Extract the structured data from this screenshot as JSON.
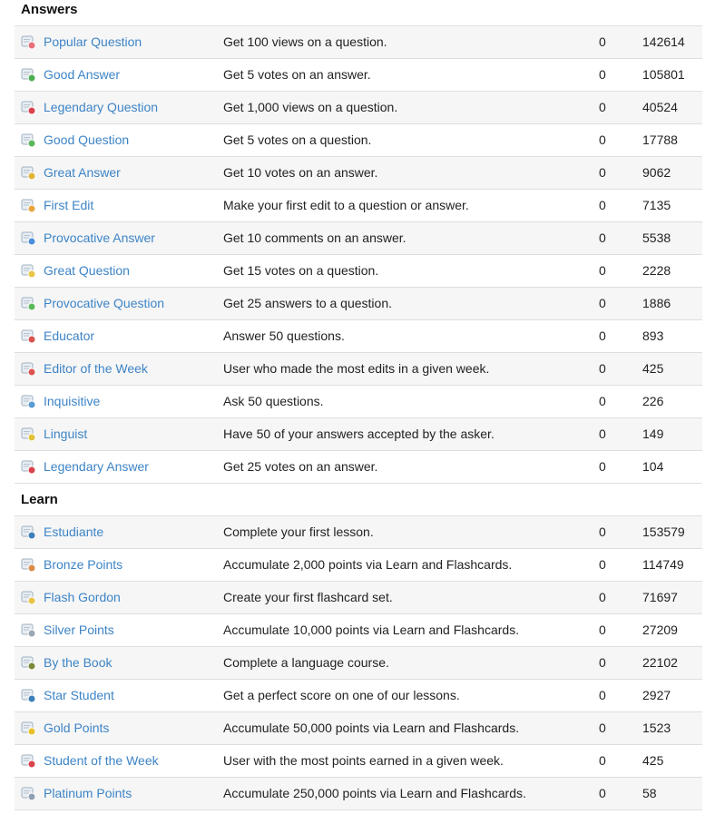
{
  "sections": [
    {
      "title": "Answers",
      "rows": [
        {
          "name": "Popular Question",
          "desc": "Get 100 views on a question.",
          "earned": "0",
          "count": "142614",
          "icon": "popular-question-icon",
          "color": "#e8707a"
        },
        {
          "name": "Good Answer",
          "desc": "Get 5 votes on an answer.",
          "earned": "0",
          "count": "105801",
          "icon": "good-answer-icon",
          "color": "#4caf50"
        },
        {
          "name": "Legendary Question",
          "desc": "Get 1,000 views on a question.",
          "earned": "0",
          "count": "40524",
          "icon": "legendary-question-icon",
          "color": "#d9434e"
        },
        {
          "name": "Good Question",
          "desc": "Get 5 votes on a question.",
          "earned": "0",
          "count": "17788",
          "icon": "good-question-icon",
          "color": "#5cb85c"
        },
        {
          "name": "Great Answer",
          "desc": "Get 10 votes on an answer.",
          "earned": "0",
          "count": "9062",
          "icon": "great-answer-icon",
          "color": "#e0b43a"
        },
        {
          "name": "First Edit",
          "desc": "Make your first edit to a question or answer.",
          "earned": "0",
          "count": "7135",
          "icon": "first-edit-icon",
          "color": "#e8a640"
        },
        {
          "name": "Provocative Answer",
          "desc": "Get 10 comments on an answer.",
          "earned": "0",
          "count": "5538",
          "icon": "provocative-answer-icon",
          "color": "#4a90d9"
        },
        {
          "name": "Great Question",
          "desc": "Get 15 votes on a question.",
          "earned": "0",
          "count": "2228",
          "icon": "great-question-icon",
          "color": "#e8c547"
        },
        {
          "name": "Provocative Question",
          "desc": "Get 25 answers to a question.",
          "earned": "0",
          "count": "1886",
          "icon": "provocative-question-icon",
          "color": "#5cb85c"
        },
        {
          "name": "Educator",
          "desc": "Answer 50 questions.",
          "earned": "0",
          "count": "893",
          "icon": "educator-icon",
          "color": "#d9534f"
        },
        {
          "name": "Editor of the Week",
          "desc": "User who made the most edits in a given week.",
          "earned": "0",
          "count": "425",
          "icon": "editor-of-the-week-icon",
          "color": "#d9534f"
        },
        {
          "name": "Inquisitive",
          "desc": "Ask 50 questions.",
          "earned": "0",
          "count": "226",
          "icon": "inquisitive-icon",
          "color": "#5b9bd5"
        },
        {
          "name": "Linguist",
          "desc": "Have 50 of your answers accepted by the asker.",
          "earned": "0",
          "count": "149",
          "icon": "linguist-icon",
          "color": "#e0c23a"
        },
        {
          "name": "Legendary Answer",
          "desc": "Get 25 votes on an answer.",
          "earned": "0",
          "count": "104",
          "icon": "legendary-answer-icon",
          "color": "#d9434e"
        }
      ]
    },
    {
      "title": "Learn",
      "rows": [
        {
          "name": "Estudiante",
          "desc": "Complete your first lesson.",
          "earned": "0",
          "count": "153579",
          "icon": "estudiante-icon",
          "color": "#3d7fb8"
        },
        {
          "name": "Bronze Points",
          "desc": "Accumulate 2,000 points via Learn and Flashcards.",
          "earned": "0",
          "count": "114749",
          "icon": "bronze-points-icon",
          "color": "#d98b4a"
        },
        {
          "name": "Flash Gordon",
          "desc": "Create your first flashcard set.",
          "earned": "0",
          "count": "71697",
          "icon": "flash-gordon-icon",
          "color": "#e8c547"
        },
        {
          "name": "Silver Points",
          "desc": "Accumulate 10,000 points via Learn and Flashcards.",
          "earned": "0",
          "count": "27209",
          "icon": "silver-points-icon",
          "color": "#9aa8b5"
        },
        {
          "name": "By the Book",
          "desc": "Complete a language course.",
          "earned": "0",
          "count": "22102",
          "icon": "by-the-book-icon",
          "color": "#7a8a3a"
        },
        {
          "name": "Star Student",
          "desc": "Get a perfect score on one of our lessons.",
          "earned": "0",
          "count": "2927",
          "icon": "star-student-icon",
          "color": "#3d7fb8"
        },
        {
          "name": "Gold Points",
          "desc": "Accumulate 50,000 points via Learn and Flashcards.",
          "earned": "0",
          "count": "1523",
          "icon": "gold-points-icon",
          "color": "#e8c02a"
        },
        {
          "name": "Student of the Week",
          "desc": "User with the most points earned in a given week.",
          "earned": "0",
          "count": "425",
          "icon": "student-of-the-week-icon",
          "color": "#d9434e"
        },
        {
          "name": "Platinum Points",
          "desc": "Accumulate 250,000 points via Learn and Flashcards.",
          "earned": "0",
          "count": "58",
          "icon": "platinum-points-icon",
          "color": "#8fa0b0"
        }
      ]
    }
  ]
}
